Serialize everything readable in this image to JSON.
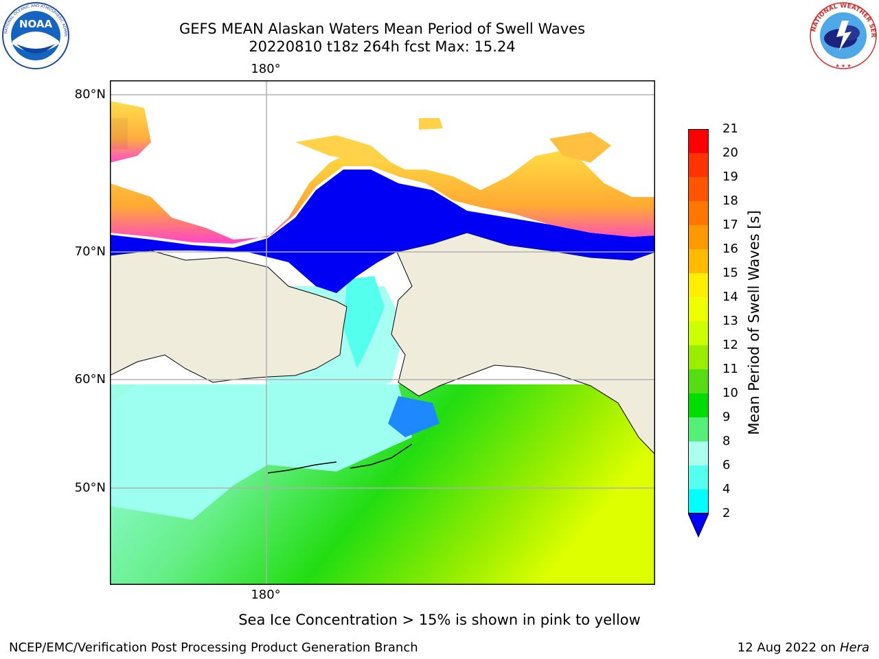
{
  "title": {
    "line1": "GEFS MEAN Alaskan Waters Mean Period of Swell Waves",
    "line2": "20220810 t18z 264h fcst   Max: 15.24"
  },
  "logos": {
    "left": {
      "text": "NOAA",
      "ring_text": "NATIONAL OCEANIC AND ATMOSPHERIC ADMINISTRATION",
      "icon": "noaa-logo-icon"
    },
    "right": {
      "ring_text": "NATIONAL WEATHER SERVICE",
      "icon": "nws-logo-icon"
    }
  },
  "map": {
    "lat_labels": [
      "80°N",
      "70°N",
      "60°N",
      "50°N"
    ],
    "lon_label_top": "180°",
    "lon_label_bottom": "180°",
    "land_color": "#efecdc",
    "grid_color": "#b0b0b0"
  },
  "colorbar": {
    "label": "Mean Period of Swell Waves [s]",
    "ticks": [
      "21",
      "20",
      "19",
      "18",
      "17",
      "16",
      "15",
      "14",
      "13",
      "12",
      "11",
      "10",
      "9",
      "8",
      "6",
      "4",
      "2"
    ],
    "colors": [
      "#ff0000",
      "#ff3300",
      "#ff5500",
      "#ff7700",
      "#ff9900",
      "#ffbb00",
      "#ffee00",
      "#eeff00",
      "#ccff00",
      "#99ee00",
      "#55dd11",
      "#00dd00",
      "#55ee77",
      "#aaffee",
      "#55ffee",
      "#00ffff",
      "#0077ff",
      "#0000ee"
    ],
    "extend_color": "#0000ff"
  },
  "notes": {
    "ice": "Sea Ice Concentration > 15% is shown in pink to yellow"
  },
  "footer": {
    "left": "NCEP/EMC/Verification Post Processing Product Generation Branch",
    "right_date": "12 Aug 2022 on",
    "right_host": "Hera"
  }
}
